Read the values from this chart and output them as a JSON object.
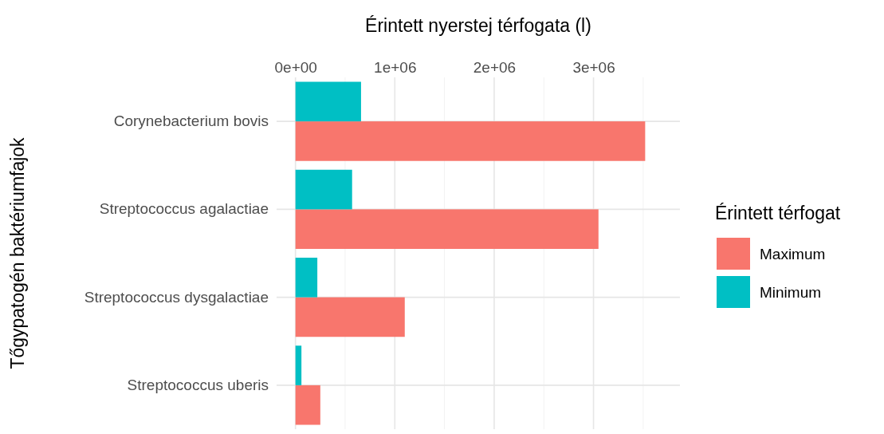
{
  "chart_data": {
    "type": "bar",
    "orientation": "horizontal",
    "xlabel": "Érintett nyerstej térfogata (l)",
    "ylabel": "Tőgypatogén baktériumfajok",
    "legend_title": "Érintett térfogat",
    "categories": [
      "Corynebacterium bovis",
      "Streptococcus agalactiae",
      "Streptococcus dysgalactiae",
      "Streptococcus uberis"
    ],
    "series": [
      {
        "name": "Maximum",
        "color": "#f8766d",
        "values": [
          3520000,
          3050000,
          1100000,
          250000
        ]
      },
      {
        "name": "Minimum",
        "color": "#00bfc4",
        "values": [
          660000,
          570000,
          220000,
          60000
        ]
      }
    ],
    "xlim": [
      -190000,
      3870000
    ],
    "xticks": [
      {
        "value": 0,
        "label": "0e+00"
      },
      {
        "value": 500000,
        "label": null
      },
      {
        "value": 1000000,
        "label": "1e+06"
      },
      {
        "value": 1500000,
        "label": null
      },
      {
        "value": 2000000,
        "label": "2e+06"
      },
      {
        "value": 2500000,
        "label": null
      },
      {
        "value": 3000000,
        "label": "3e+06"
      },
      {
        "value": 3500000,
        "label": null
      }
    ],
    "grid": true,
    "legend": "right"
  }
}
